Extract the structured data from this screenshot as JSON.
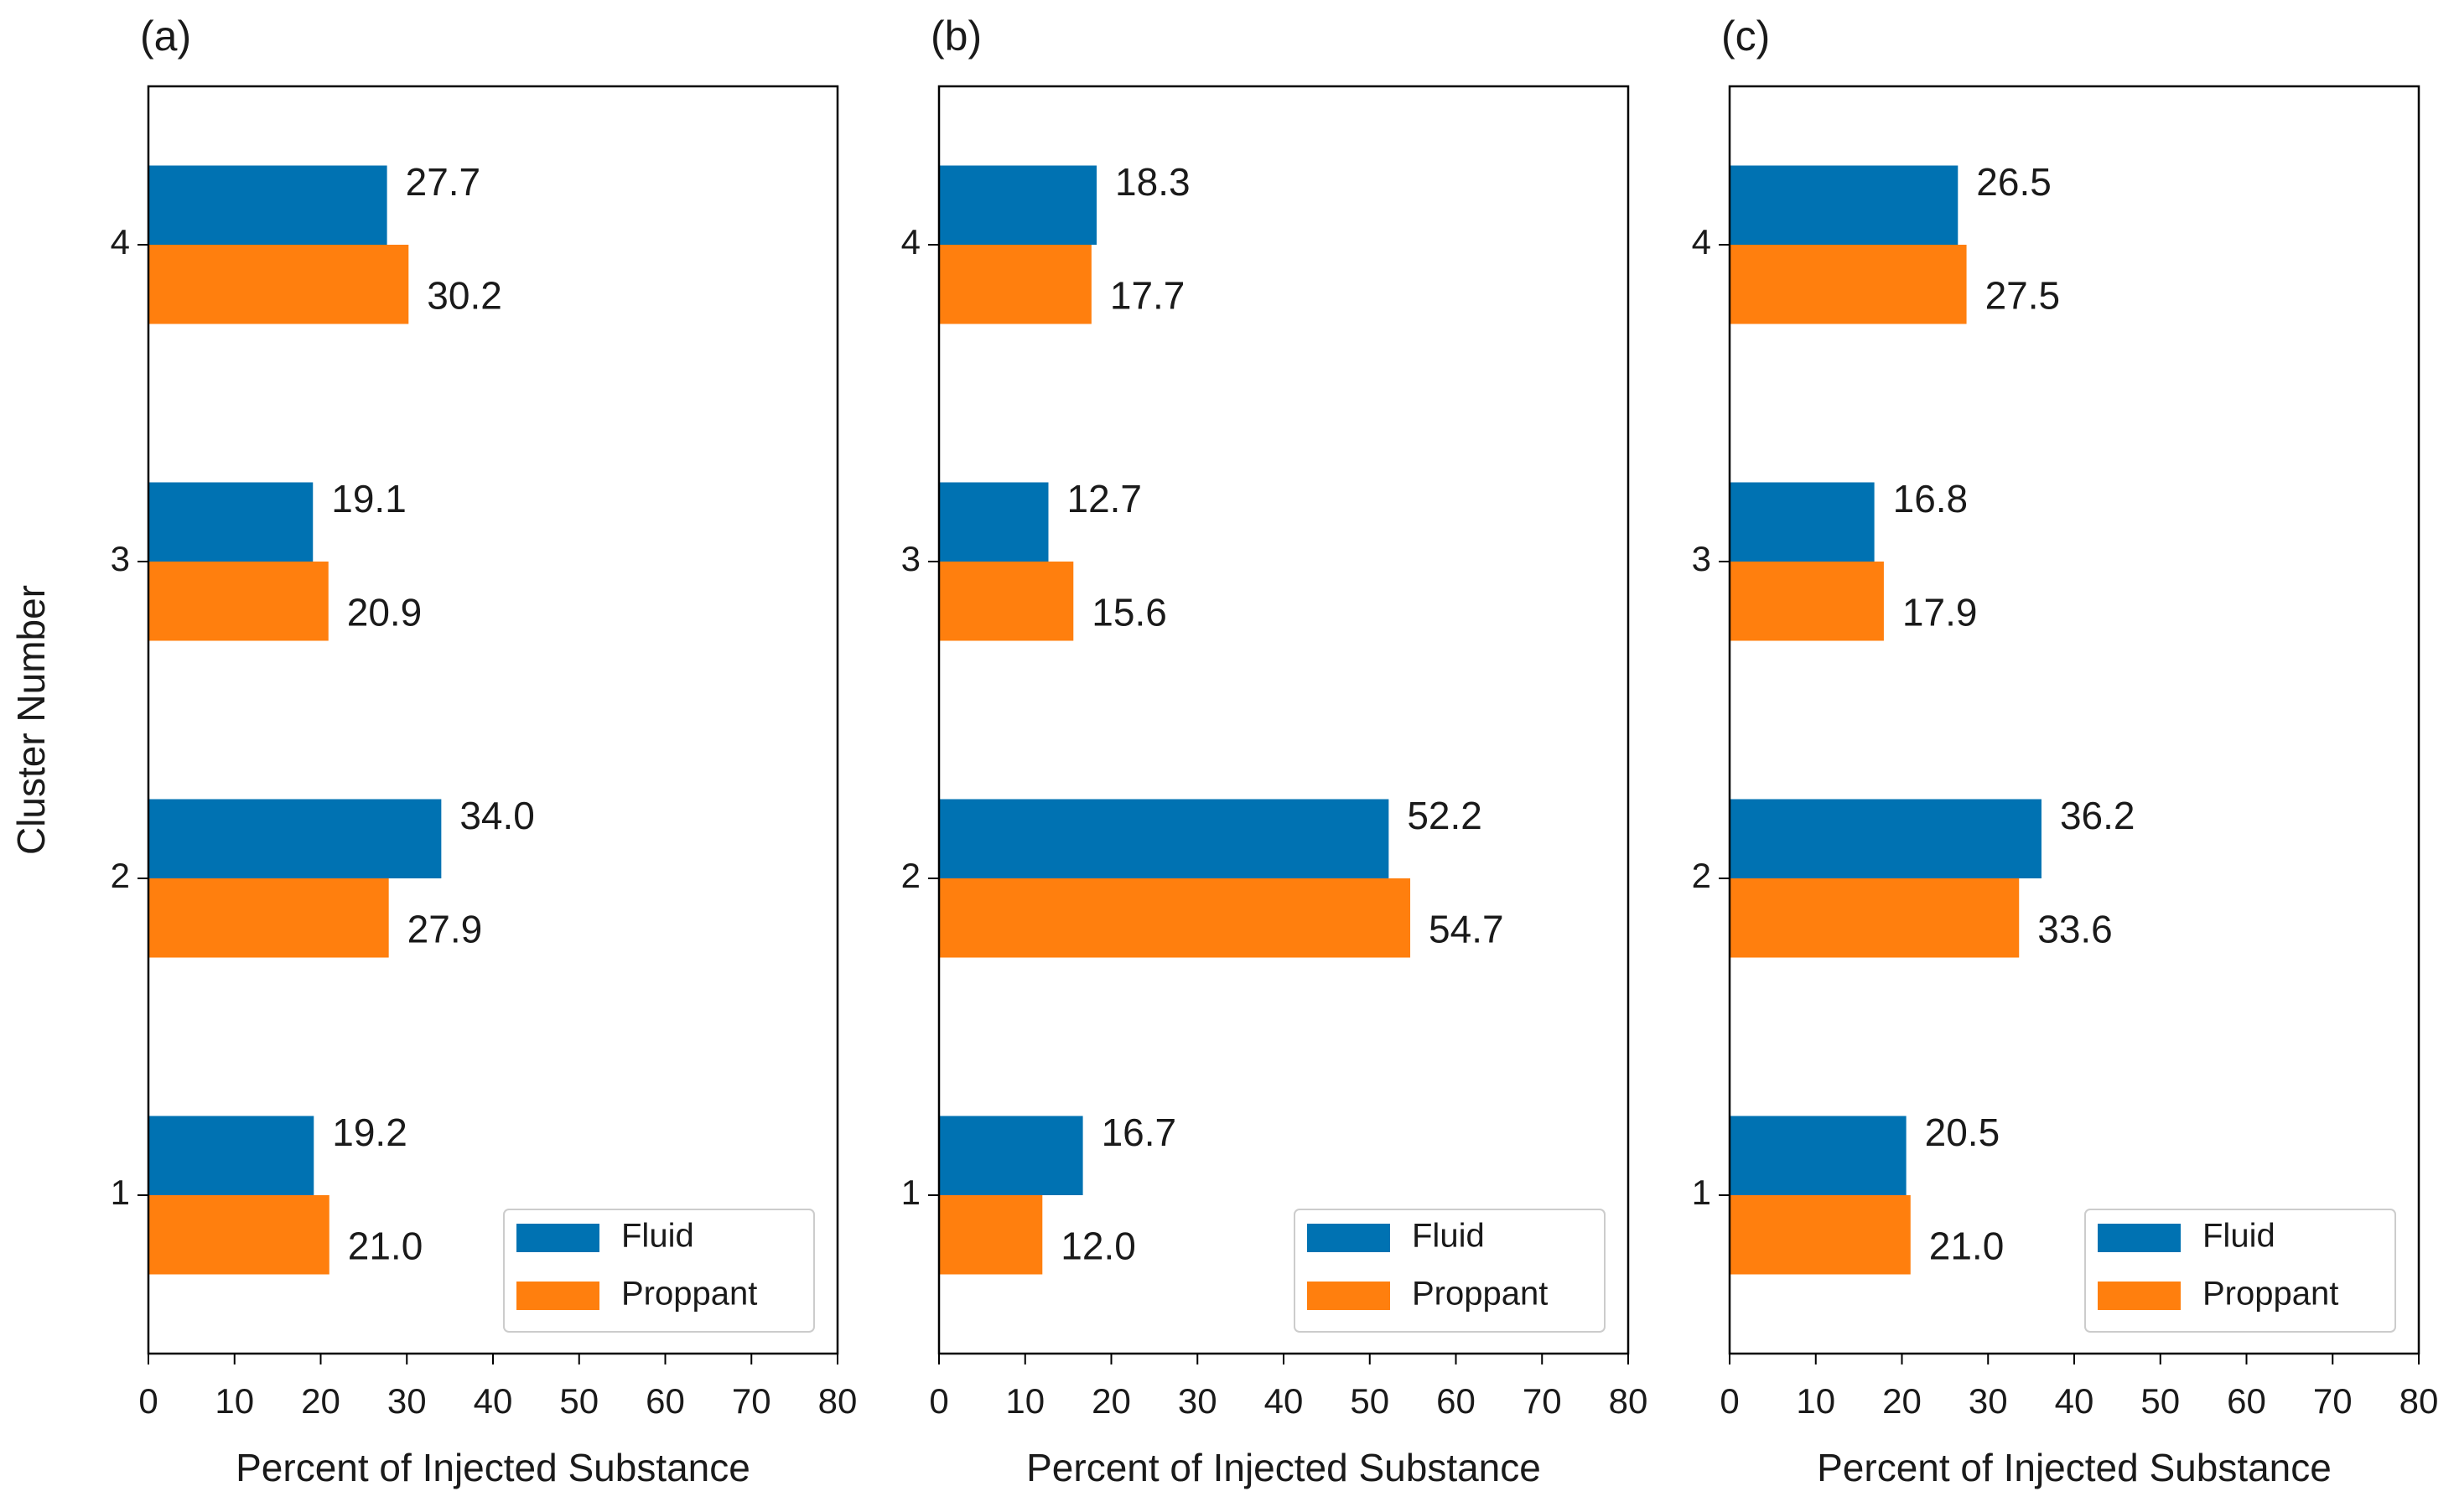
{
  "chart_data": [
    {
      "type": "barh",
      "title": "(a)",
      "x_label": "Percent of Injected Substance",
      "y_label": "Cluster Number",
      "categories": [
        "1",
        "2",
        "3",
        "4"
      ],
      "series": [
        {
          "name": "Fluid",
          "color": "#0072b2",
          "values": [
            19.2,
            34.0,
            19.1,
            27.7
          ],
          "value_labels": [
            "19.2",
            "34.0",
            "19.1",
            "27.7"
          ]
        },
        {
          "name": "Proppant",
          "color": "#ff7f0e",
          "values": [
            21.0,
            27.9,
            20.9,
            30.2
          ],
          "value_labels": [
            "21.0",
            "27.9",
            "20.9",
            "30.2"
          ]
        }
      ],
      "xlim": [
        0,
        80
      ],
      "xticks": [
        0,
        10,
        20,
        30,
        40,
        50,
        60,
        70,
        80
      ],
      "legend": "lower right"
    },
    {
      "type": "barh",
      "title": "(b)",
      "x_label": "Percent of Injected Substance",
      "categories": [
        "1",
        "2",
        "3",
        "4"
      ],
      "series": [
        {
          "name": "Fluid",
          "color": "#0072b2",
          "values": [
            16.7,
            52.2,
            12.7,
            18.3
          ],
          "value_labels": [
            "16.7",
            "52.2",
            "12.7",
            "18.3"
          ]
        },
        {
          "name": "Proppant",
          "color": "#ff7f0e",
          "values": [
            12.0,
            54.7,
            15.6,
            17.7
          ],
          "value_labels": [
            "12.0",
            "54.7",
            "15.6",
            "17.7"
          ]
        }
      ],
      "xlim": [
        0,
        80
      ],
      "xticks": [
        0,
        10,
        20,
        30,
        40,
        50,
        60,
        70,
        80
      ],
      "legend": "lower right"
    },
    {
      "type": "barh",
      "title": "(c)",
      "x_label": "Percent of Injected Substance",
      "categories": [
        "1",
        "2",
        "3",
        "4"
      ],
      "series": [
        {
          "name": "Fluid",
          "color": "#0072b2",
          "values": [
            20.5,
            36.2,
            16.8,
            26.5
          ],
          "value_labels": [
            "20.5",
            "36.2",
            "16.8",
            "26.5"
          ]
        },
        {
          "name": "Proppant",
          "color": "#ff7f0e",
          "values": [
            21.0,
            33.6,
            17.9,
            27.5
          ],
          "value_labels": [
            "21.0",
            "33.6",
            "17.9",
            "27.5"
          ]
        }
      ],
      "xlim": [
        0,
        80
      ],
      "xticks": [
        0,
        10,
        20,
        30,
        40,
        50,
        60,
        70,
        80
      ],
      "legend": "lower right"
    }
  ]
}
